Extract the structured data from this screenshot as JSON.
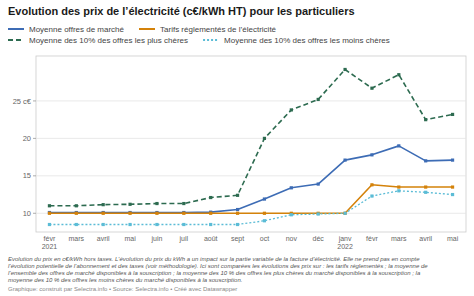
{
  "chart_data": {
    "type": "line",
    "title": "Evolution des prix de l’électricité (c€/kWh HT) pour les particuliers",
    "categories": [
      "févr\n2021",
      "mars",
      "avril",
      "mai",
      "juin",
      "juil",
      "août",
      "sept",
      "oct",
      "nov",
      "déc",
      "janv\n2022",
      "févr",
      "mars",
      "avril",
      "mai"
    ],
    "series": [
      {
        "name": "Moyenne offres de marché",
        "color": "#3d6cb5",
        "line_style": "solid",
        "marker": "square",
        "values": [
          10.1,
          10.1,
          10.1,
          10.1,
          10.1,
          10.1,
          10.15,
          10.5,
          11.9,
          13.4,
          13.9,
          17.1,
          17.8,
          19.0,
          17.0,
          17.1
        ]
      },
      {
        "name": "Tarifs réglementés de l’électricité",
        "color": "#d4820a",
        "line_style": "solid",
        "marker": "square",
        "values": [
          10.0,
          10.0,
          10.0,
          10.0,
          10.0,
          10.0,
          10.0,
          10.0,
          10.0,
          10.0,
          10.0,
          10.0,
          13.8,
          13.5,
          13.5,
          13.5
        ]
      },
      {
        "name": "Moyenne des 10% des offres les plus chères",
        "color": "#2d6b50",
        "line_style": "dashed",
        "marker": "square",
        "values": [
          11.0,
          11.0,
          11.15,
          11.2,
          11.3,
          11.3,
          12.1,
          12.4,
          20.0,
          23.8,
          25.2,
          29.2,
          26.7,
          28.5,
          22.5,
          23.2
        ]
      },
      {
        "name": "Moyenne des 10% des offres les moins chères",
        "color": "#5bbcd6",
        "line_style": "dotted",
        "marker": "square",
        "values": [
          8.5,
          8.5,
          8.5,
          8.5,
          8.5,
          8.5,
          8.5,
          8.5,
          9.0,
          9.8,
          9.9,
          10.0,
          12.3,
          13.0,
          12.8,
          12.5
        ]
      }
    ],
    "ylim": [
      7.5,
      31
    ],
    "yticks": [
      10,
      15,
      20,
      {
        "value": 25,
        "label": "25 c€"
      }
    ],
    "grid": true,
    "legend": "top",
    "footnotes": [
      "Evolution du prix en c€/kWh hors taxes. L’évolution du prix du kWh a un impact sur la partie variable de la facture d’électricité. Elle ne prend pas en compte",
      "l’évolution potentielle de l’abonnement et des taxes (voir méthodologie). Ici sont comparées les évolutions des prix sur : les tarifs réglementés ; la moyenne de",
      "l’ensemble des offres de marché disponibles à la souscription ; la moyenne des 10 % des offres les plus chères du marché disponibles à la souscription ; la",
      "moyenne des 10 % des offres les moins chères du marché disponibles à la souscription."
    ],
    "source": "Graphique: construit par Selectra.info • Source: Selectra.info • Créé avec Datawrapper"
  }
}
